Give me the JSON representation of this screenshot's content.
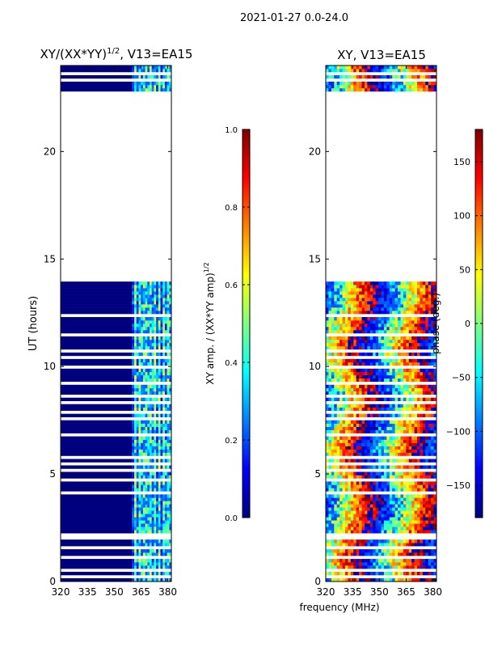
{
  "suptitle": "2021-01-27 0.0-24.0",
  "xlabel": "frequency (MHz)",
  "colors": {
    "background": "#ffffff",
    "jet": [
      "#00007f",
      "#0000ff",
      "#007fff",
      "#00ffff",
      "#7fff7f",
      "#ffff00",
      "#ff7f00",
      "#ff0000",
      "#7f0000"
    ]
  },
  "chart_data": [
    {
      "type": "heatmap",
      "title_main": "XY/(XX*YY)",
      "title_sup": "1/2",
      "title_tail": ", V13=EA15",
      "xlabel": "",
      "ylabel": "UT (hours)",
      "xlim": [
        320,
        382
      ],
      "ylim": [
        0,
        24
      ],
      "xticks": [
        320,
        335,
        350,
        365,
        380
      ],
      "yticks": [
        0,
        5,
        10,
        15,
        20
      ],
      "x_data_range": [
        320,
        382
      ],
      "no_data_hours": [
        [
          14,
          22.8
        ]
      ],
      "active_band_mhz": [
        360,
        382
      ],
      "values_note": "normalized amplitude 0-1; mostly ~0.05 outside 360-382 MHz, 0.2-0.6 inside",
      "colorbar": {
        "label_main": "XY amp. / (XX*YY amp)",
        "label_sup": "1/2",
        "range": [
          0.0,
          1.0
        ],
        "ticks": [
          "0.0",
          "0.2",
          "0.4",
          "0.6",
          "0.8",
          "1.0"
        ]
      }
    },
    {
      "type": "heatmap",
      "title": "XY, V13=EA15",
      "xlabel": "",
      "ylabel": "",
      "xlim": [
        320,
        382
      ],
      "ylim": [
        0,
        24
      ],
      "xticks": [
        320,
        335,
        350,
        365,
        380
      ],
      "yticks": [
        0,
        5,
        10,
        15,
        20
      ],
      "no_data_hours": [
        [
          14,
          22.8
        ]
      ],
      "values_note": "phase in degrees, wraps across -180..180 with frequency",
      "colorbar": {
        "label": "phase (deg.)",
        "range": [
          -180,
          180
        ],
        "ticks": [
          "−150",
          "−100",
          "−50",
          "0",
          "50",
          "100",
          "150"
        ],
        "tick_values": [
          -150,
          -100,
          -50,
          0,
          50,
          100,
          150
        ]
      }
    }
  ]
}
